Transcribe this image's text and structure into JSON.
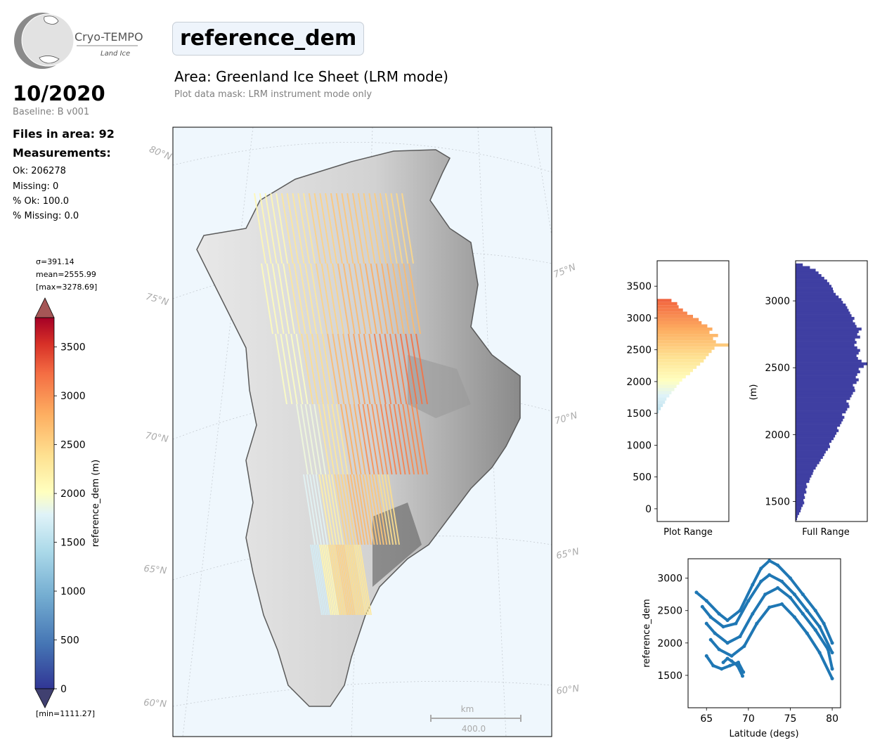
{
  "logo": {
    "name": "Cryo-TEMPO",
    "sub": "Land Ice"
  },
  "header": {
    "title": "reference_dem",
    "area": "Area: Greenland Ice Sheet (LRM mode)",
    "mask": "Plot data mask: LRM instrument mode only"
  },
  "info": {
    "month": "10/2020",
    "baseline": "Baseline: B v001",
    "files": "Files in area: 92",
    "measurements": "Measurements:",
    "ok": "Ok: 206278",
    "missing": "Missing: 0",
    "pct_ok": "% Ok: 100.0",
    "pct_missing": "% Missing: 0.0"
  },
  "colorbar": {
    "sigma": "σ=391.14",
    "mean": "mean=2555.99",
    "max": "[max=3278.69]",
    "min": "[min=1111.27]",
    "label": "reference_dem (m)",
    "ticks": [
      "0",
      "500",
      "1000",
      "1500",
      "2000",
      "2500",
      "3000",
      "3500"
    ],
    "range": [
      0,
      3800
    ]
  },
  "map": {
    "lat_labels": [
      "80°N",
      "75°N",
      "75°N",
      "70°N",
      "70°N",
      "65°N",
      "65°N",
      "60°N",
      "60°N"
    ],
    "scale_unit": "km",
    "scale_value": "400.0"
  },
  "chart_data": [
    {
      "type": "bar",
      "orientation": "horizontal",
      "title": "",
      "xlabel": "Plot Range",
      "ylabel": "",
      "ylim": [
        -200,
        3900
      ],
      "yticks": [
        "0",
        "500",
        "1000",
        "1500",
        "2000",
        "2500",
        "3000",
        "3500"
      ],
      "bins": [
        1500,
        1550,
        1600,
        1650,
        1700,
        1750,
        1800,
        1850,
        1900,
        1950,
        2000,
        2050,
        2100,
        2150,
        2200,
        2250,
        2300,
        2350,
        2400,
        2450,
        2500,
        2550,
        2600,
        2650,
        2700,
        2750,
        2800,
        2850,
        2900,
        2950,
        3000,
        3050,
        3100,
        3150,
        3200,
        3250
      ],
      "values": [
        0.02,
        0.05,
        0.08,
        0.11,
        0.13,
        0.17,
        0.2,
        0.24,
        0.27,
        0.31,
        0.35,
        0.4,
        0.46,
        0.5,
        0.55,
        0.6,
        0.65,
        0.68,
        0.72,
        0.76,
        0.8,
        1.0,
        0.82,
        0.78,
        0.85,
        0.73,
        0.77,
        0.7,
        0.62,
        0.58,
        0.5,
        0.42,
        0.36,
        0.3,
        0.28,
        0.2
      ]
    },
    {
      "type": "bar",
      "orientation": "horizontal",
      "title": "",
      "xlabel": "Full Range",
      "ylabel": "(m)",
      "ylim": [
        1350,
        3300
      ],
      "yticks": [
        "1500",
        "2000",
        "2500",
        "3000"
      ],
      "bins": [
        1360,
        1380,
        1400,
        1420,
        1440,
        1460,
        1480,
        1500,
        1520,
        1540,
        1560,
        1580,
        1600,
        1620,
        1640,
        1660,
        1680,
        1700,
        1720,
        1740,
        1760,
        1780,
        1800,
        1820,
        1840,
        1860,
        1880,
        1900,
        1920,
        1940,
        1960,
        1980,
        2000,
        2020,
        2040,
        2060,
        2080,
        2100,
        2120,
        2140,
        2160,
        2180,
        2200,
        2220,
        2240,
        2260,
        2280,
        2300,
        2320,
        2340,
        2360,
        2380,
        2400,
        2420,
        2440,
        2460,
        2480,
        2500,
        2520,
        2540,
        2560,
        2580,
        2600,
        2620,
        2640,
        2660,
        2680,
        2700,
        2720,
        2740,
        2760,
        2780,
        2800,
        2820,
        2840,
        2860,
        2880,
        2900,
        2920,
        2940,
        2960,
        2980,
        3000,
        3020,
        3040,
        3060,
        3080,
        3100,
        3120,
        3140,
        3160,
        3180,
        3200,
        3220,
        3240,
        3260
      ],
      "values": [
        0.02,
        0.03,
        0.05,
        0.07,
        0.08,
        0.1,
        0.12,
        0.11,
        0.13,
        0.12,
        0.15,
        0.14,
        0.16,
        0.15,
        0.19,
        0.2,
        0.22,
        0.24,
        0.25,
        0.28,
        0.3,
        0.33,
        0.35,
        0.38,
        0.4,
        0.42,
        0.45,
        0.48,
        0.47,
        0.5,
        0.53,
        0.55,
        0.57,
        0.6,
        0.58,
        0.62,
        0.64,
        0.66,
        0.68,
        0.65,
        0.7,
        0.72,
        0.75,
        0.74,
        0.71,
        0.76,
        0.78,
        0.8,
        0.83,
        0.82,
        0.8,
        0.85,
        0.88,
        0.84,
        0.86,
        0.9,
        0.88,
        0.95,
        1.0,
        0.92,
        0.87,
        0.85,
        0.88,
        0.9,
        0.86,
        0.82,
        0.85,
        0.83,
        0.9,
        0.86,
        0.88,
        0.92,
        0.85,
        0.83,
        0.8,
        0.82,
        0.78,
        0.76,
        0.74,
        0.72,
        0.7,
        0.66,
        0.64,
        0.6,
        0.56,
        0.53,
        0.52,
        0.5,
        0.47,
        0.44,
        0.4,
        0.36,
        0.32,
        0.28,
        0.2,
        0.1
      ]
    },
    {
      "type": "scatter",
      "title": "",
      "xlabel": "Latitude (degs)",
      "ylabel": "reference_dem",
      "xlim": [
        62.8,
        81.0
      ],
      "ylim": [
        1000,
        3300
      ],
      "xticks": [
        "65",
        "70",
        "75",
        "80"
      ],
      "yticks": [
        "1500",
        "2000",
        "2500",
        "3000"
      ],
      "series": [
        {
          "x": [
            63.8,
            65.0,
            66.5,
            67.5,
            69.0,
            70.5,
            71.5,
            72.5,
            73.5,
            75.0,
            76.5,
            78.0,
            79.0,
            80.0
          ],
          "y": [
            2780,
            2650,
            2450,
            2350,
            2500,
            2900,
            3150,
            3270,
            3200,
            3000,
            2750,
            2500,
            2300,
            2000
          ]
        },
        {
          "x": [
            64.5,
            65.5,
            67.0,
            68.5,
            70.0,
            71.5,
            72.5,
            74.0,
            75.5,
            77.0,
            78.5,
            80.0
          ],
          "y": [
            2560,
            2400,
            2250,
            2300,
            2650,
            2950,
            3050,
            2950,
            2750,
            2500,
            2250,
            1850
          ]
        },
        {
          "x": [
            65.0,
            66.0,
            67.5,
            69.0,
            70.5,
            72.0,
            73.5,
            75.0,
            76.5,
            78.0,
            79.5,
            80.0
          ],
          "y": [
            2300,
            2150,
            2000,
            2100,
            2450,
            2750,
            2850,
            2700,
            2450,
            2200,
            1900,
            1600
          ]
        },
        {
          "x": [
            65.5,
            66.5,
            68.0,
            69.5,
            71.0,
            72.5,
            74.0,
            75.5,
            77.0,
            78.5,
            80.0
          ],
          "y": [
            2050,
            1900,
            1800,
            1950,
            2300,
            2550,
            2600,
            2400,
            2150,
            1850,
            1450
          ]
        },
        {
          "x": [
            65.0,
            65.8,
            66.8,
            67.8,
            68.8,
            69.4
          ],
          "y": [
            1800,
            1650,
            1600,
            1650,
            1700,
            1550
          ]
        },
        {
          "x": [
            67.0,
            67.5,
            68.0,
            68.7,
            69.3
          ],
          "y": [
            1700,
            1760,
            1720,
            1650,
            1490
          ]
        }
      ]
    }
  ]
}
